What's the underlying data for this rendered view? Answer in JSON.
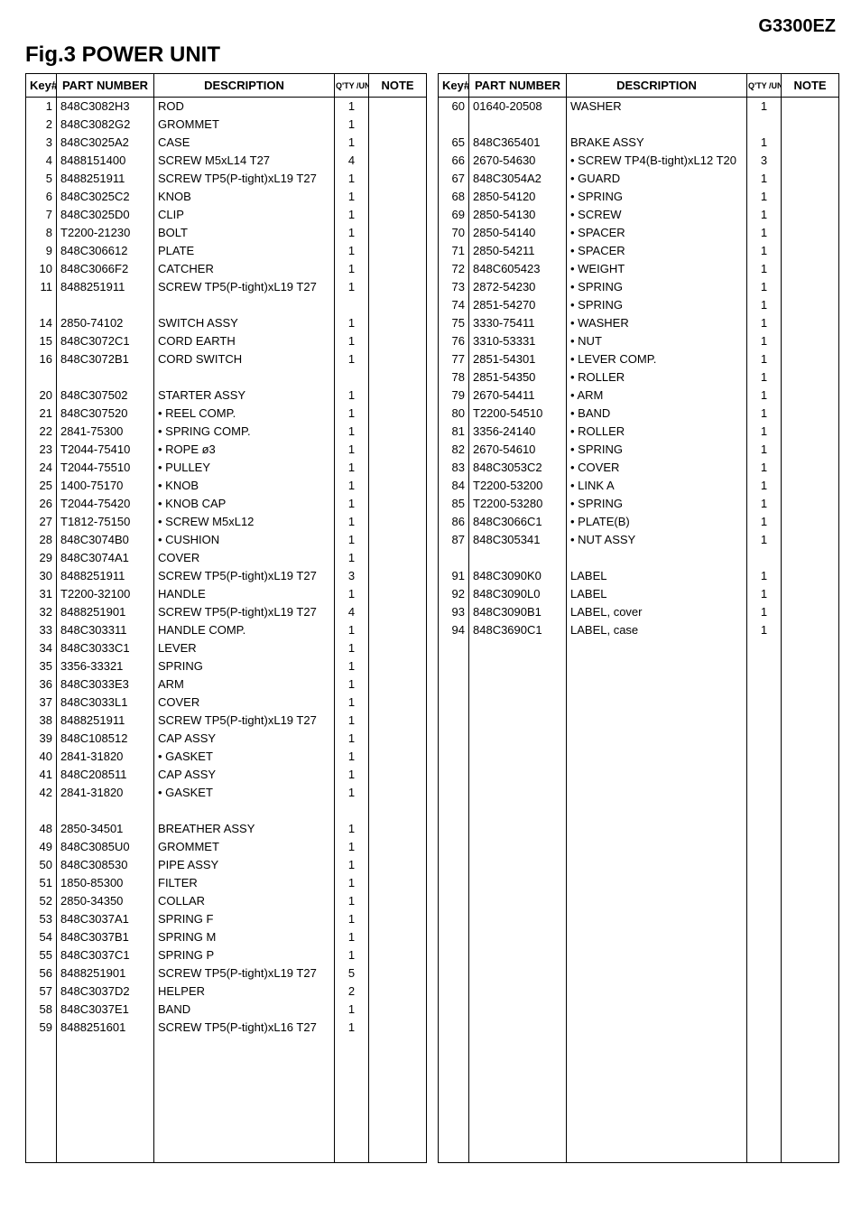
{
  "model": "G3300EZ",
  "title": "Fig.3 POWER UNIT",
  "headers": {
    "key": "Key#",
    "part": "PART NUMBER",
    "desc": "DESCRIPTION",
    "qty": "Q'TY /UNIT",
    "note": "NOTE"
  },
  "row_count": 59,
  "left": [
    {
      "key": "1",
      "part": "848C3082H3",
      "desc": "ROD",
      "qty": "1",
      "note": ""
    },
    {
      "key": "2",
      "part": "848C3082G2",
      "desc": "GROMMET",
      "qty": "1",
      "note": ""
    },
    {
      "key": "3",
      "part": "848C3025A2",
      "desc": "CASE",
      "qty": "1",
      "note": ""
    },
    {
      "key": "4",
      "part": "8488151400",
      "desc": "SCREW M5xL14 T27",
      "qty": "4",
      "note": ""
    },
    {
      "key": "5",
      "part": "8488251911",
      "desc": "SCREW TP5(P-tight)xL19 T27",
      "qty": "1",
      "note": ""
    },
    {
      "key": "6",
      "part": "848C3025C2",
      "desc": "KNOB",
      "qty": "1",
      "note": ""
    },
    {
      "key": "7",
      "part": "848C3025D0",
      "desc": "CLIP",
      "qty": "1",
      "note": ""
    },
    {
      "key": "8",
      "part": "T2200-21230",
      "desc": "BOLT",
      "qty": "1",
      "note": ""
    },
    {
      "key": "9",
      "part": "848C306612",
      "desc": "PLATE",
      "qty": "1",
      "note": ""
    },
    {
      "key": "10",
      "part": "848C3066F2",
      "desc": "CATCHER",
      "qty": "1",
      "note": ""
    },
    {
      "key": "11",
      "part": "8488251911",
      "desc": "SCREW TP5(P-tight)xL19 T27",
      "qty": "1",
      "note": ""
    },
    {
      "key": "",
      "part": "",
      "desc": "",
      "qty": "",
      "note": ""
    },
    {
      "key": "14",
      "part": "2850-74102",
      "desc": "SWITCH ASSY",
      "qty": "1",
      "note": ""
    },
    {
      "key": "15",
      "part": "848C3072C1",
      "desc": "CORD EARTH",
      "qty": "1",
      "note": ""
    },
    {
      "key": "16",
      "part": "848C3072B1",
      "desc": "CORD SWITCH",
      "qty": "1",
      "note": ""
    },
    {
      "key": "",
      "part": "",
      "desc": "",
      "qty": "",
      "note": ""
    },
    {
      "key": "20",
      "part": "848C307502",
      "desc": "STARTER ASSY",
      "qty": "1",
      "note": ""
    },
    {
      "key": "21",
      "part": "848C307520",
      "desc": "• REEL COMP.",
      "qty": "1",
      "note": ""
    },
    {
      "key": "22",
      "part": "2841-75300",
      "desc": "• SPRING COMP.",
      "qty": "1",
      "note": ""
    },
    {
      "key": "23",
      "part": "T2044-75410",
      "desc": "• ROPE ø3",
      "qty": "1",
      "note": ""
    },
    {
      "key": "24",
      "part": "T2044-75510",
      "desc": "• PULLEY",
      "qty": "1",
      "note": ""
    },
    {
      "key": "25",
      "part": "1400-75170",
      "desc": "• KNOB",
      "qty": "1",
      "note": ""
    },
    {
      "key": "26",
      "part": "T2044-75420",
      "desc": "• KNOB CAP",
      "qty": "1",
      "note": ""
    },
    {
      "key": "27",
      "part": "T1812-75150",
      "desc": "• SCREW M5xL12",
      "qty": "1",
      "note": ""
    },
    {
      "key": "28",
      "part": "848C3074B0",
      "desc": "• CUSHION",
      "qty": "1",
      "note": ""
    },
    {
      "key": "29",
      "part": "848C3074A1",
      "desc": "COVER",
      "qty": "1",
      "note": ""
    },
    {
      "key": "30",
      "part": "8488251911",
      "desc": "SCREW TP5(P-tight)xL19 T27",
      "qty": "3",
      "note": ""
    },
    {
      "key": "31",
      "part": "T2200-32100",
      "desc": "HANDLE",
      "qty": "1",
      "note": ""
    },
    {
      "key": "32",
      "part": "8488251901",
      "desc": "SCREW TP5(P-tight)xL19 T27",
      "qty": "4",
      "note": ""
    },
    {
      "key": "33",
      "part": "848C303311",
      "desc": "HANDLE COMP.",
      "qty": "1",
      "note": ""
    },
    {
      "key": "34",
      "part": "848C3033C1",
      "desc": "LEVER",
      "qty": "1",
      "note": ""
    },
    {
      "key": "35",
      "part": "3356-33321",
      "desc": "SPRING",
      "qty": "1",
      "note": ""
    },
    {
      "key": "36",
      "part": "848C3033E3",
      "desc": "ARM",
      "qty": "1",
      "note": ""
    },
    {
      "key": "37",
      "part": "848C3033L1",
      "desc": "COVER",
      "qty": "1",
      "note": ""
    },
    {
      "key": "38",
      "part": "8488251911",
      "desc": "SCREW TP5(P-tight)xL19 T27",
      "qty": "1",
      "note": ""
    },
    {
      "key": "39",
      "part": "848C108512",
      "desc": "CAP ASSY",
      "qty": "1",
      "note": ""
    },
    {
      "key": "40",
      "part": "2841-31820",
      "desc": "• GASKET",
      "qty": "1",
      "note": ""
    },
    {
      "key": "41",
      "part": "848C208511",
      "desc": "CAP ASSY",
      "qty": "1",
      "note": ""
    },
    {
      "key": "42",
      "part": "2841-31820",
      "desc": "• GASKET",
      "qty": "1",
      "note": ""
    },
    {
      "key": "",
      "part": "",
      "desc": "",
      "qty": "",
      "note": ""
    },
    {
      "key": "48",
      "part": "2850-34501",
      "desc": "BREATHER ASSY",
      "qty": "1",
      "note": ""
    },
    {
      "key": "49",
      "part": "848C3085U0",
      "desc": "GROMMET",
      "qty": "1",
      "note": ""
    },
    {
      "key": "50",
      "part": "848C308530",
      "desc": "PIPE ASSY",
      "qty": "1",
      "note": ""
    },
    {
      "key": "51",
      "part": "1850-85300",
      "desc": "FILTER",
      "qty": "1",
      "note": ""
    },
    {
      "key": "52",
      "part": "2850-34350",
      "desc": "COLLAR",
      "qty": "1",
      "note": ""
    },
    {
      "key": "53",
      "part": "848C3037A1",
      "desc": "SPRING F",
      "qty": "1",
      "note": ""
    },
    {
      "key": "54",
      "part": "848C3037B1",
      "desc": "SPRING M",
      "qty": "1",
      "note": ""
    },
    {
      "key": "55",
      "part": "848C3037C1",
      "desc": "SPRING P",
      "qty": "1",
      "note": ""
    },
    {
      "key": "56",
      "part": "8488251901",
      "desc": "SCREW TP5(P-tight)xL19 T27",
      "qty": "5",
      "note": ""
    },
    {
      "key": "57",
      "part": "848C3037D2",
      "desc": "HELPER",
      "qty": "2",
      "note": ""
    },
    {
      "key": "58",
      "part": "848C3037E1",
      "desc": "BAND",
      "qty": "1",
      "note": ""
    },
    {
      "key": "59",
      "part": "8488251601",
      "desc": "SCREW TP5(P-tight)xL16 T27",
      "qty": "1",
      "note": ""
    }
  ],
  "right": [
    {
      "key": "60",
      "part": "01640-20508",
      "desc": "WASHER",
      "qty": "1",
      "note": ""
    },
    {
      "key": "",
      "part": "",
      "desc": "",
      "qty": "",
      "note": ""
    },
    {
      "key": "65",
      "part": "848C365401",
      "desc": "BRAKE ASSY",
      "qty": "1",
      "note": ""
    },
    {
      "key": "66",
      "part": "2670-54630",
      "desc": "• SCREW TP4(B-tight)xL12 T20",
      "qty": "3",
      "note": ""
    },
    {
      "key": "67",
      "part": "848C3054A2",
      "desc": "• GUARD",
      "qty": "1",
      "note": ""
    },
    {
      "key": "68",
      "part": "2850-54120",
      "desc": "• SPRING",
      "qty": "1",
      "note": ""
    },
    {
      "key": "69",
      "part": "2850-54130",
      "desc": "• SCREW",
      "qty": "1",
      "note": ""
    },
    {
      "key": "70",
      "part": "2850-54140",
      "desc": "• SPACER",
      "qty": "1",
      "note": ""
    },
    {
      "key": "71",
      "part": "2850-54211",
      "desc": "• SPACER",
      "qty": "1",
      "note": ""
    },
    {
      "key": "72",
      "part": "848C605423",
      "desc": "• WEIGHT",
      "qty": "1",
      "note": ""
    },
    {
      "key": "73",
      "part": "2872-54230",
      "desc": "• SPRING",
      "qty": "1",
      "note": ""
    },
    {
      "key": "74",
      "part": "2851-54270",
      "desc": "• SPRING",
      "qty": "1",
      "note": ""
    },
    {
      "key": "75",
      "part": "3330-75411",
      "desc": "• WASHER",
      "qty": "1",
      "note": ""
    },
    {
      "key": "76",
      "part": "3310-53331",
      "desc": "• NUT",
      "qty": "1",
      "note": ""
    },
    {
      "key": "77",
      "part": "2851-54301",
      "desc": "• LEVER COMP.",
      "qty": "1",
      "note": ""
    },
    {
      "key": "78",
      "part": "2851-54350",
      "desc": "• ROLLER",
      "qty": "1",
      "note": ""
    },
    {
      "key": "79",
      "part": "2670-54411",
      "desc": "• ARM",
      "qty": "1",
      "note": ""
    },
    {
      "key": "80",
      "part": "T2200-54510",
      "desc": "• BAND",
      "qty": "1",
      "note": ""
    },
    {
      "key": "81",
      "part": "3356-24140",
      "desc": "• ROLLER",
      "qty": "1",
      "note": ""
    },
    {
      "key": "82",
      "part": "2670-54610",
      "desc": "• SPRING",
      "qty": "1",
      "note": ""
    },
    {
      "key": "83",
      "part": "848C3053C2",
      "desc": "• COVER",
      "qty": "1",
      "note": ""
    },
    {
      "key": "84",
      "part": "T2200-53200",
      "desc": "• LINK A",
      "qty": "1",
      "note": ""
    },
    {
      "key": "85",
      "part": "T2200-53280",
      "desc": "• SPRING",
      "qty": "1",
      "note": ""
    },
    {
      "key": "86",
      "part": "848C3066C1",
      "desc": "• PLATE(B)",
      "qty": "1",
      "note": ""
    },
    {
      "key": "87",
      "part": "848C305341",
      "desc": "• NUT ASSY",
      "qty": "1",
      "note": ""
    },
    {
      "key": "",
      "part": "",
      "desc": "",
      "qty": "",
      "note": ""
    },
    {
      "key": "91",
      "part": "848C3090K0",
      "desc": "LABEL",
      "qty": "1",
      "note": ""
    },
    {
      "key": "92",
      "part": "848C3090L0",
      "desc": "LABEL",
      "qty": "1",
      "note": ""
    },
    {
      "key": "93",
      "part": "848C3090B1",
      "desc": "LABEL, cover",
      "qty": "1",
      "note": ""
    },
    {
      "key": "94",
      "part": "848C3690C1",
      "desc": "LABEL, case",
      "qty": "1",
      "note": ""
    }
  ]
}
